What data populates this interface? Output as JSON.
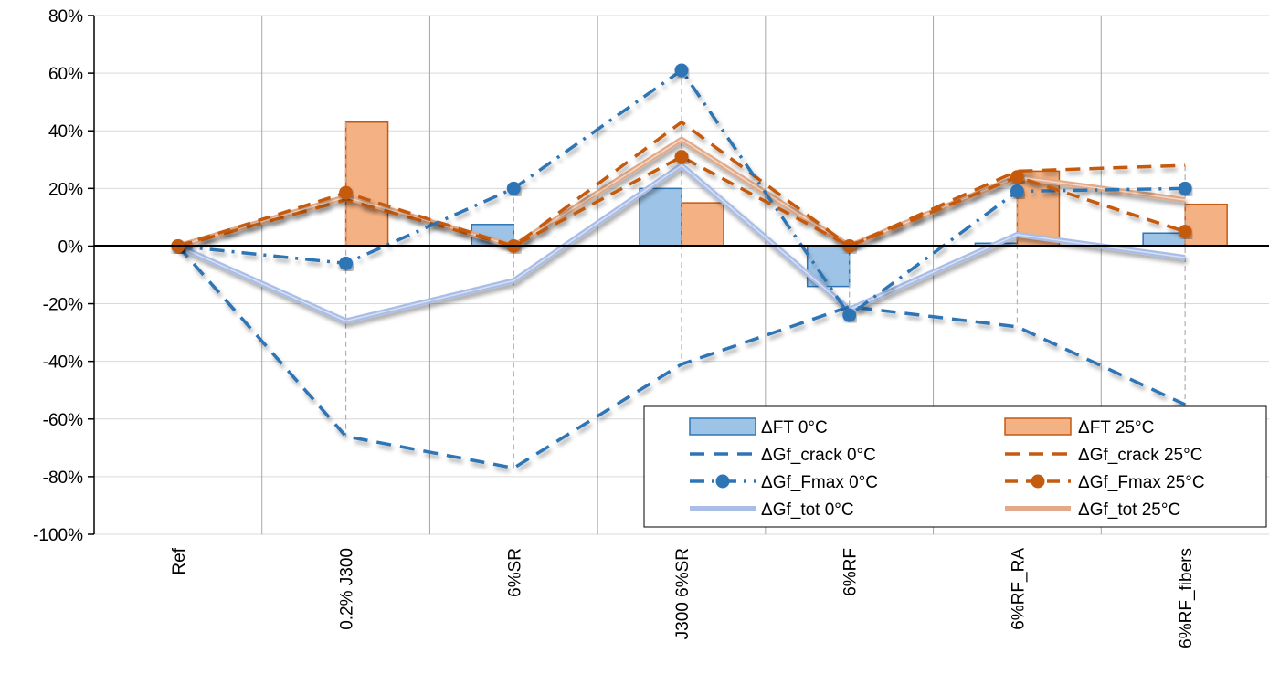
{
  "chart_data": {
    "type": "bar",
    "title": "",
    "xlabel": "",
    "ylabel": "",
    "categories": [
      "Ref",
      "0.2% J300",
      "6%SR",
      "J300 6%SR",
      "6%RF",
      "6%RF_RA",
      "6%RF_fibers"
    ],
    "ylim": [
      -100,
      80
    ],
    "yticks": [
      -100,
      -80,
      -60,
      -40,
      -20,
      0,
      20,
      40,
      60,
      80
    ],
    "ytick_labels": [
      "-100%",
      "-80%",
      "-60%",
      "-40%",
      "-20%",
      "0%",
      "20%",
      "40%",
      "60%",
      "80%"
    ],
    "y_unit": "%",
    "grid": true,
    "legend_position": "bottom-right",
    "series": [
      {
        "name": "ΔFT 0°C",
        "type": "bar",
        "color": "#9dc3e6",
        "edge": "#2e75b6",
        "values": [
          0,
          0,
          7.5,
          20,
          -14,
          1,
          4.5
        ]
      },
      {
        "name": "ΔFT 25°C",
        "type": "bar",
        "color": "#f4b183",
        "edge": "#c55a11",
        "values": [
          0,
          43,
          0,
          15,
          0,
          26,
          14.5
        ]
      },
      {
        "name": "ΔGf_crack 0°C",
        "type": "line",
        "style": "dashed",
        "color": "#2e75b6",
        "values": [
          0,
          -66,
          -77,
          -41,
          -21,
          -28,
          -55
        ]
      },
      {
        "name": "ΔGf_crack 25°C",
        "type": "line",
        "style": "dashed",
        "color": "#c55a11",
        "values": [
          0,
          16,
          0,
          43,
          0,
          26,
          28
        ]
      },
      {
        "name": "ΔGf_Fmax 0°C",
        "type": "line",
        "style": "dashdot-marker",
        "color": "#2e75b6",
        "values": [
          0,
          -6,
          20,
          61,
          -24,
          19,
          20
        ]
      },
      {
        "name": "ΔGf_Fmax 25°C",
        "type": "line",
        "style": "dashed-marker",
        "color": "#c55a11",
        "values": [
          0,
          18.5,
          0,
          31,
          0,
          24,
          5
        ]
      },
      {
        "name": "ΔGf_tot 0°C",
        "type": "line",
        "style": "thick",
        "color": "#a9bde6",
        "values": [
          0,
          -26,
          -12,
          28,
          -22,
          4,
          -4
        ]
      },
      {
        "name": "ΔGf_tot 25°C",
        "type": "line",
        "style": "thick",
        "color": "#e2aa88",
        "values": [
          0,
          17,
          0,
          37,
          0,
          24,
          16
        ]
      }
    ]
  }
}
